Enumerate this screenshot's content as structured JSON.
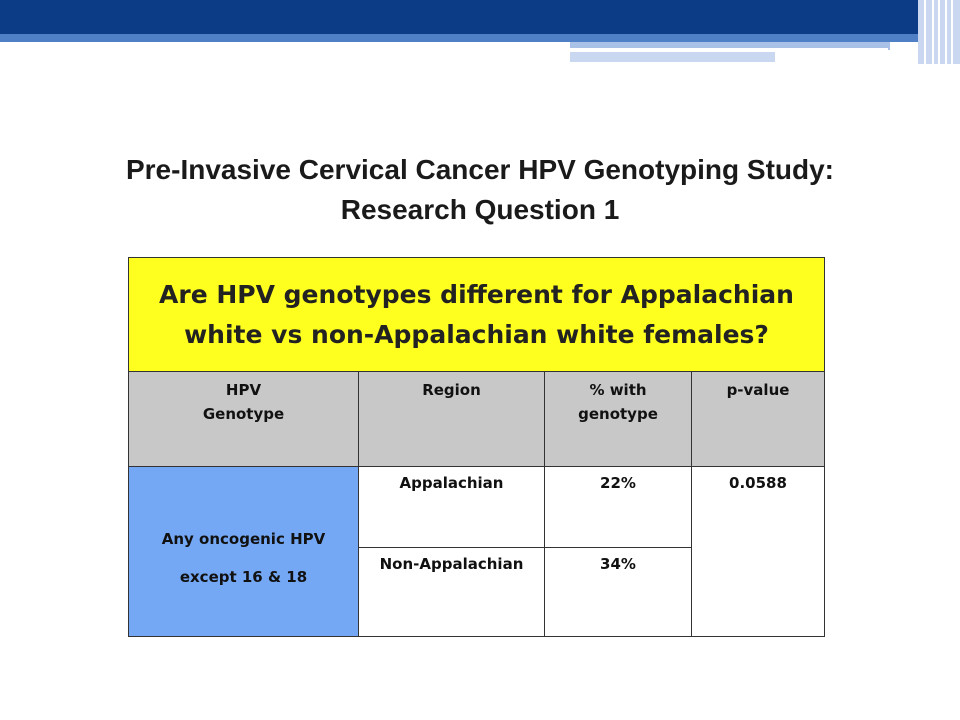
{
  "slide": {
    "title_line1": "Pre-Invasive Cervical Cancer HPV Genotyping Study:",
    "title_line2": "Research Question 1"
  },
  "table": {
    "question_line1": "Are HPV genotypes different for Appalachian",
    "question_line2": "white vs non-Appalachian white females?",
    "headers": {
      "genotype_line1": "HPV",
      "genotype_line2": "Genotype",
      "region": "Region",
      "pct_line1": "% with",
      "pct_line2": "genotype",
      "pvalue": "p-value"
    },
    "genotype": {
      "line1": "Any oncogenic HPV",
      "line2": "except 16 & 18"
    },
    "rows": [
      {
        "region": "Appalachian",
        "percent": "22%"
      },
      {
        "region": "Non-Appalachian",
        "percent": "34%"
      }
    ],
    "p_value": "0.0588"
  },
  "colors": {
    "banner_dark": "#0d3c86",
    "question_bg": "#ffff1f",
    "header_bg": "#c8c8c8",
    "genotype_bg": "#74a8f5"
  }
}
